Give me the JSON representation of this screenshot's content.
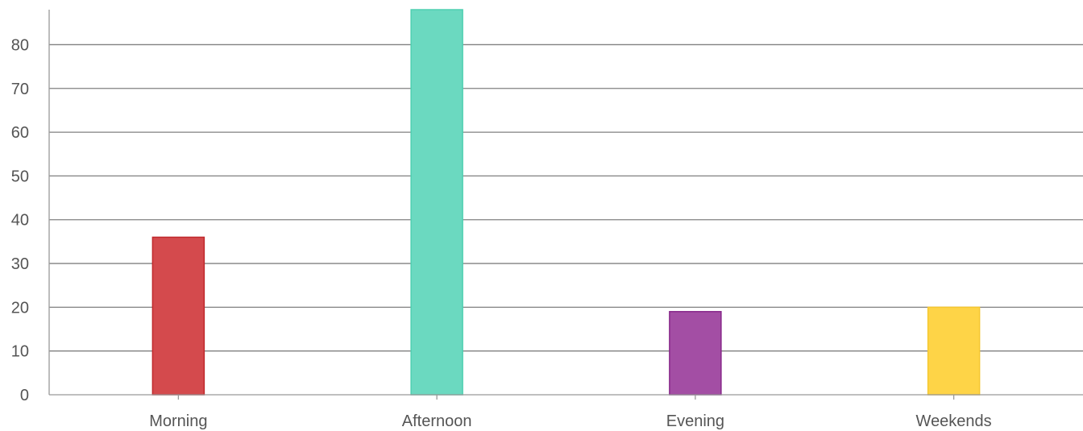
{
  "chart_data": {
    "type": "bar",
    "title": "",
    "xlabel": "",
    "ylabel": "",
    "categories": [
      "Morning",
      "Afternoon",
      "Evening",
      "Weekends"
    ],
    "values": [
      36,
      88,
      19,
      20
    ],
    "ylim": [
      0,
      88
    ],
    "yticks": [
      "0",
      "10",
      "20",
      "30",
      "40",
      "50",
      "60",
      "70",
      "80"
    ],
    "grid": true,
    "legend": "none",
    "colors": [
      {
        "fill": "#d44a4d",
        "stroke": "#c0282b"
      },
      {
        "fill": "#6bd9c0",
        "stroke": "#4fcfb1"
      },
      {
        "fill": "#a34ea4",
        "stroke": "#87278a"
      },
      {
        "fill": "#fed447",
        "stroke": "#f5c730"
      }
    ],
    "gridline_color": "#808080",
    "axis_color": "#999999"
  }
}
